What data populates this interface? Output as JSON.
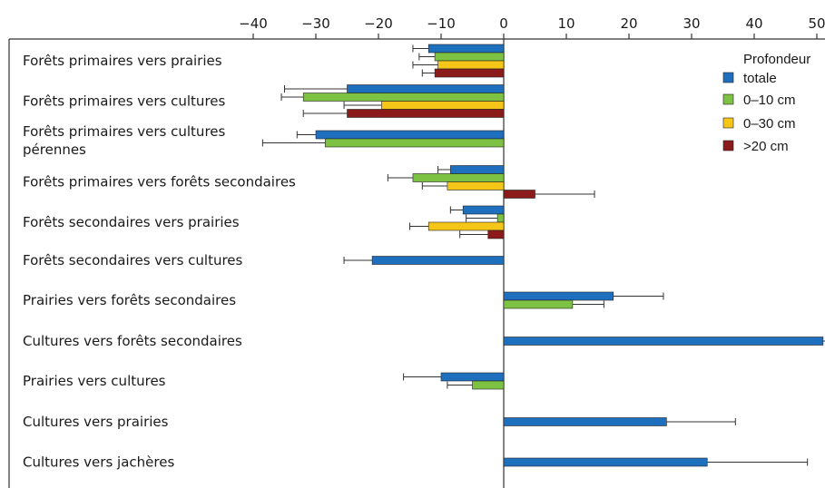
{
  "chart_data": {
    "type": "bar",
    "orientation": "horizontal",
    "xlim": [
      -40,
      50
    ],
    "xticks": [
      -40,
      -30,
      -20,
      -10,
      0,
      10,
      20,
      30,
      40,
      50
    ],
    "xtick_labels": [
      "−40",
      "−30",
      "−20",
      "−10",
      "0",
      "10",
      "20",
      "30",
      "40",
      "50"
    ],
    "legend": {
      "title": "Profondeur",
      "position": "top-right"
    },
    "series": [
      {
        "name": "totale",
        "color": "#1f6fbf"
      },
      {
        "name": "0–10 cm",
        "color": "#7dc242"
      },
      {
        "name": "0–30 cm",
        "color": "#f5c518"
      },
      {
        "name": ">20 cm",
        "color": "#8b1a1a"
      }
    ],
    "categories": [
      {
        "label": [
          "Forêts primaires vers prairies"
        ],
        "bars": [
          {
            "series": 0,
            "value": -12,
            "err": 2.5
          },
          {
            "series": 1,
            "value": -11,
            "err": 2.5
          },
          {
            "series": 2,
            "value": -10.5,
            "err": 4
          },
          {
            "series": 3,
            "value": -11,
            "err": 2
          }
        ]
      },
      {
        "label": [
          "Forêts primaires vers cultures"
        ],
        "bars": [
          {
            "series": 0,
            "value": -25,
            "err": 10
          },
          {
            "series": 1,
            "value": -32,
            "err": 3.5
          },
          {
            "series": 2,
            "value": -19.5,
            "err": 6
          },
          {
            "series": 3,
            "value": -25,
            "err": 7
          }
        ]
      },
      {
        "label": [
          "Forêts primaires vers cultures",
          "pérennes"
        ],
        "bars": [
          {
            "series": 0,
            "value": -30,
            "err": 3
          },
          {
            "series": 1,
            "value": -28.5,
            "err": 10
          }
        ]
      },
      {
        "label": [
          "Forêts primaires vers forêts secondaires"
        ],
        "bars": [
          {
            "series": 0,
            "value": -8.5,
            "err": 2
          },
          {
            "series": 1,
            "value": -14.5,
            "err": 4
          },
          {
            "series": 2,
            "value": -9,
            "err": 4
          },
          {
            "series": 3,
            "value": 5,
            "err": 9.5
          }
        ]
      },
      {
        "label": [
          "Forêts secondaires vers prairies"
        ],
        "bars": [
          {
            "series": 0,
            "value": -6.5,
            "err": 2
          },
          {
            "series": 1,
            "value": -1,
            "err": 5
          },
          {
            "series": 2,
            "value": -12,
            "err": 3
          },
          {
            "series": 3,
            "value": -2.5,
            "err": 4.5
          }
        ]
      },
      {
        "label": [
          "Forêts secondaires vers cultures"
        ],
        "bars": [
          {
            "series": 0,
            "value": -21,
            "err": 4.5
          }
        ]
      },
      {
        "label": [
          "Prairies vers forêts secondaires"
        ],
        "bars": [
          {
            "series": 0,
            "value": 17.5,
            "err": 8
          },
          {
            "series": 1,
            "value": 11,
            "err": 5
          }
        ]
      },
      {
        "label": [
          "Cultures vers forêts secondaires"
        ],
        "bars": [
          {
            "series": 0,
            "value": 51,
            "err": 12
          }
        ]
      },
      {
        "label": [
          "Prairies vers cultures"
        ],
        "bars": [
          {
            "series": 0,
            "value": -10,
            "err": 6
          },
          {
            "series": 1,
            "value": -5,
            "err": 4
          }
        ]
      },
      {
        "label": [
          "Cultures vers prairies"
        ],
        "bars": [
          {
            "series": 0,
            "value": 26,
            "err": 11
          }
        ]
      },
      {
        "label": [
          "Cultures vers jachères"
        ],
        "bars": [
          {
            "series": 0,
            "value": 32.5,
            "err": 16
          }
        ]
      }
    ]
  }
}
